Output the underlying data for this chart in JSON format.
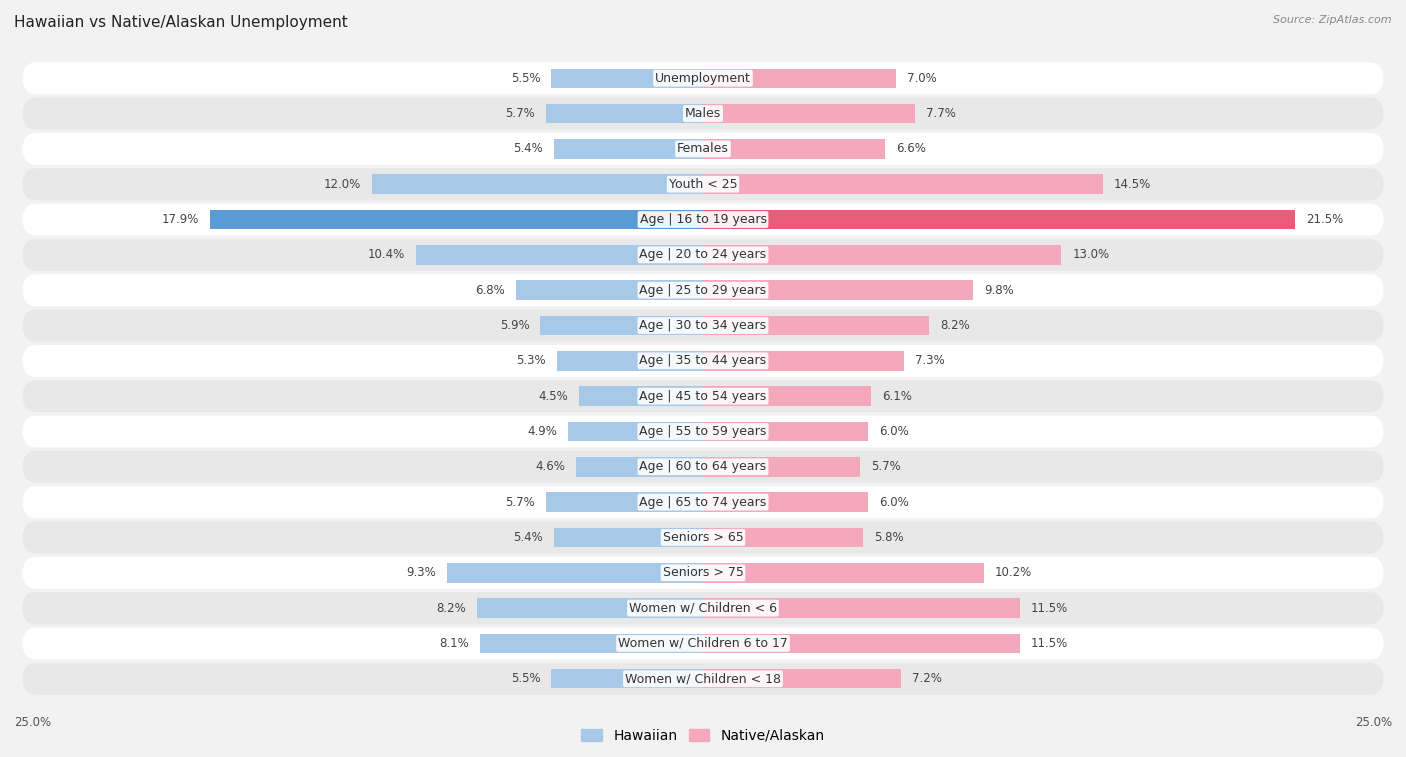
{
  "title": "Hawaiian vs Native/Alaskan Unemployment",
  "source": "Source: ZipAtlas.com",
  "categories": [
    "Unemployment",
    "Males",
    "Females",
    "Youth < 25",
    "Age | 16 to 19 years",
    "Age | 20 to 24 years",
    "Age | 25 to 29 years",
    "Age | 30 to 34 years",
    "Age | 35 to 44 years",
    "Age | 45 to 54 years",
    "Age | 55 to 59 years",
    "Age | 60 to 64 years",
    "Age | 65 to 74 years",
    "Seniors > 65",
    "Seniors > 75",
    "Women w/ Children < 6",
    "Women w/ Children 6 to 17",
    "Women w/ Children < 18"
  ],
  "hawaiian": [
    5.5,
    5.7,
    5.4,
    12.0,
    17.9,
    10.4,
    6.8,
    5.9,
    5.3,
    4.5,
    4.9,
    4.6,
    5.7,
    5.4,
    9.3,
    8.2,
    8.1,
    5.5
  ],
  "native_alaskan": [
    7.0,
    7.7,
    6.6,
    14.5,
    21.5,
    13.0,
    9.8,
    8.2,
    7.3,
    6.1,
    6.0,
    5.7,
    6.0,
    5.8,
    10.2,
    11.5,
    11.5,
    7.2
  ],
  "hawaiian_color": "#a8c8e8",
  "native_alaskan_color": "#f4a8bc",
  "highlight_hawaiian_color": "#5b9bd5",
  "highlight_native_color": "#e85c7a",
  "axis_max": 25.0,
  "background_color": "#f2f2f2",
  "row_even_color": "#ffffff",
  "row_odd_color": "#e8e8e8",
  "label_fontsize": 9,
  "title_fontsize": 11,
  "value_fontsize": 8.5,
  "legend_labels": [
    "Hawaiian",
    "Native/Alaskan"
  ]
}
